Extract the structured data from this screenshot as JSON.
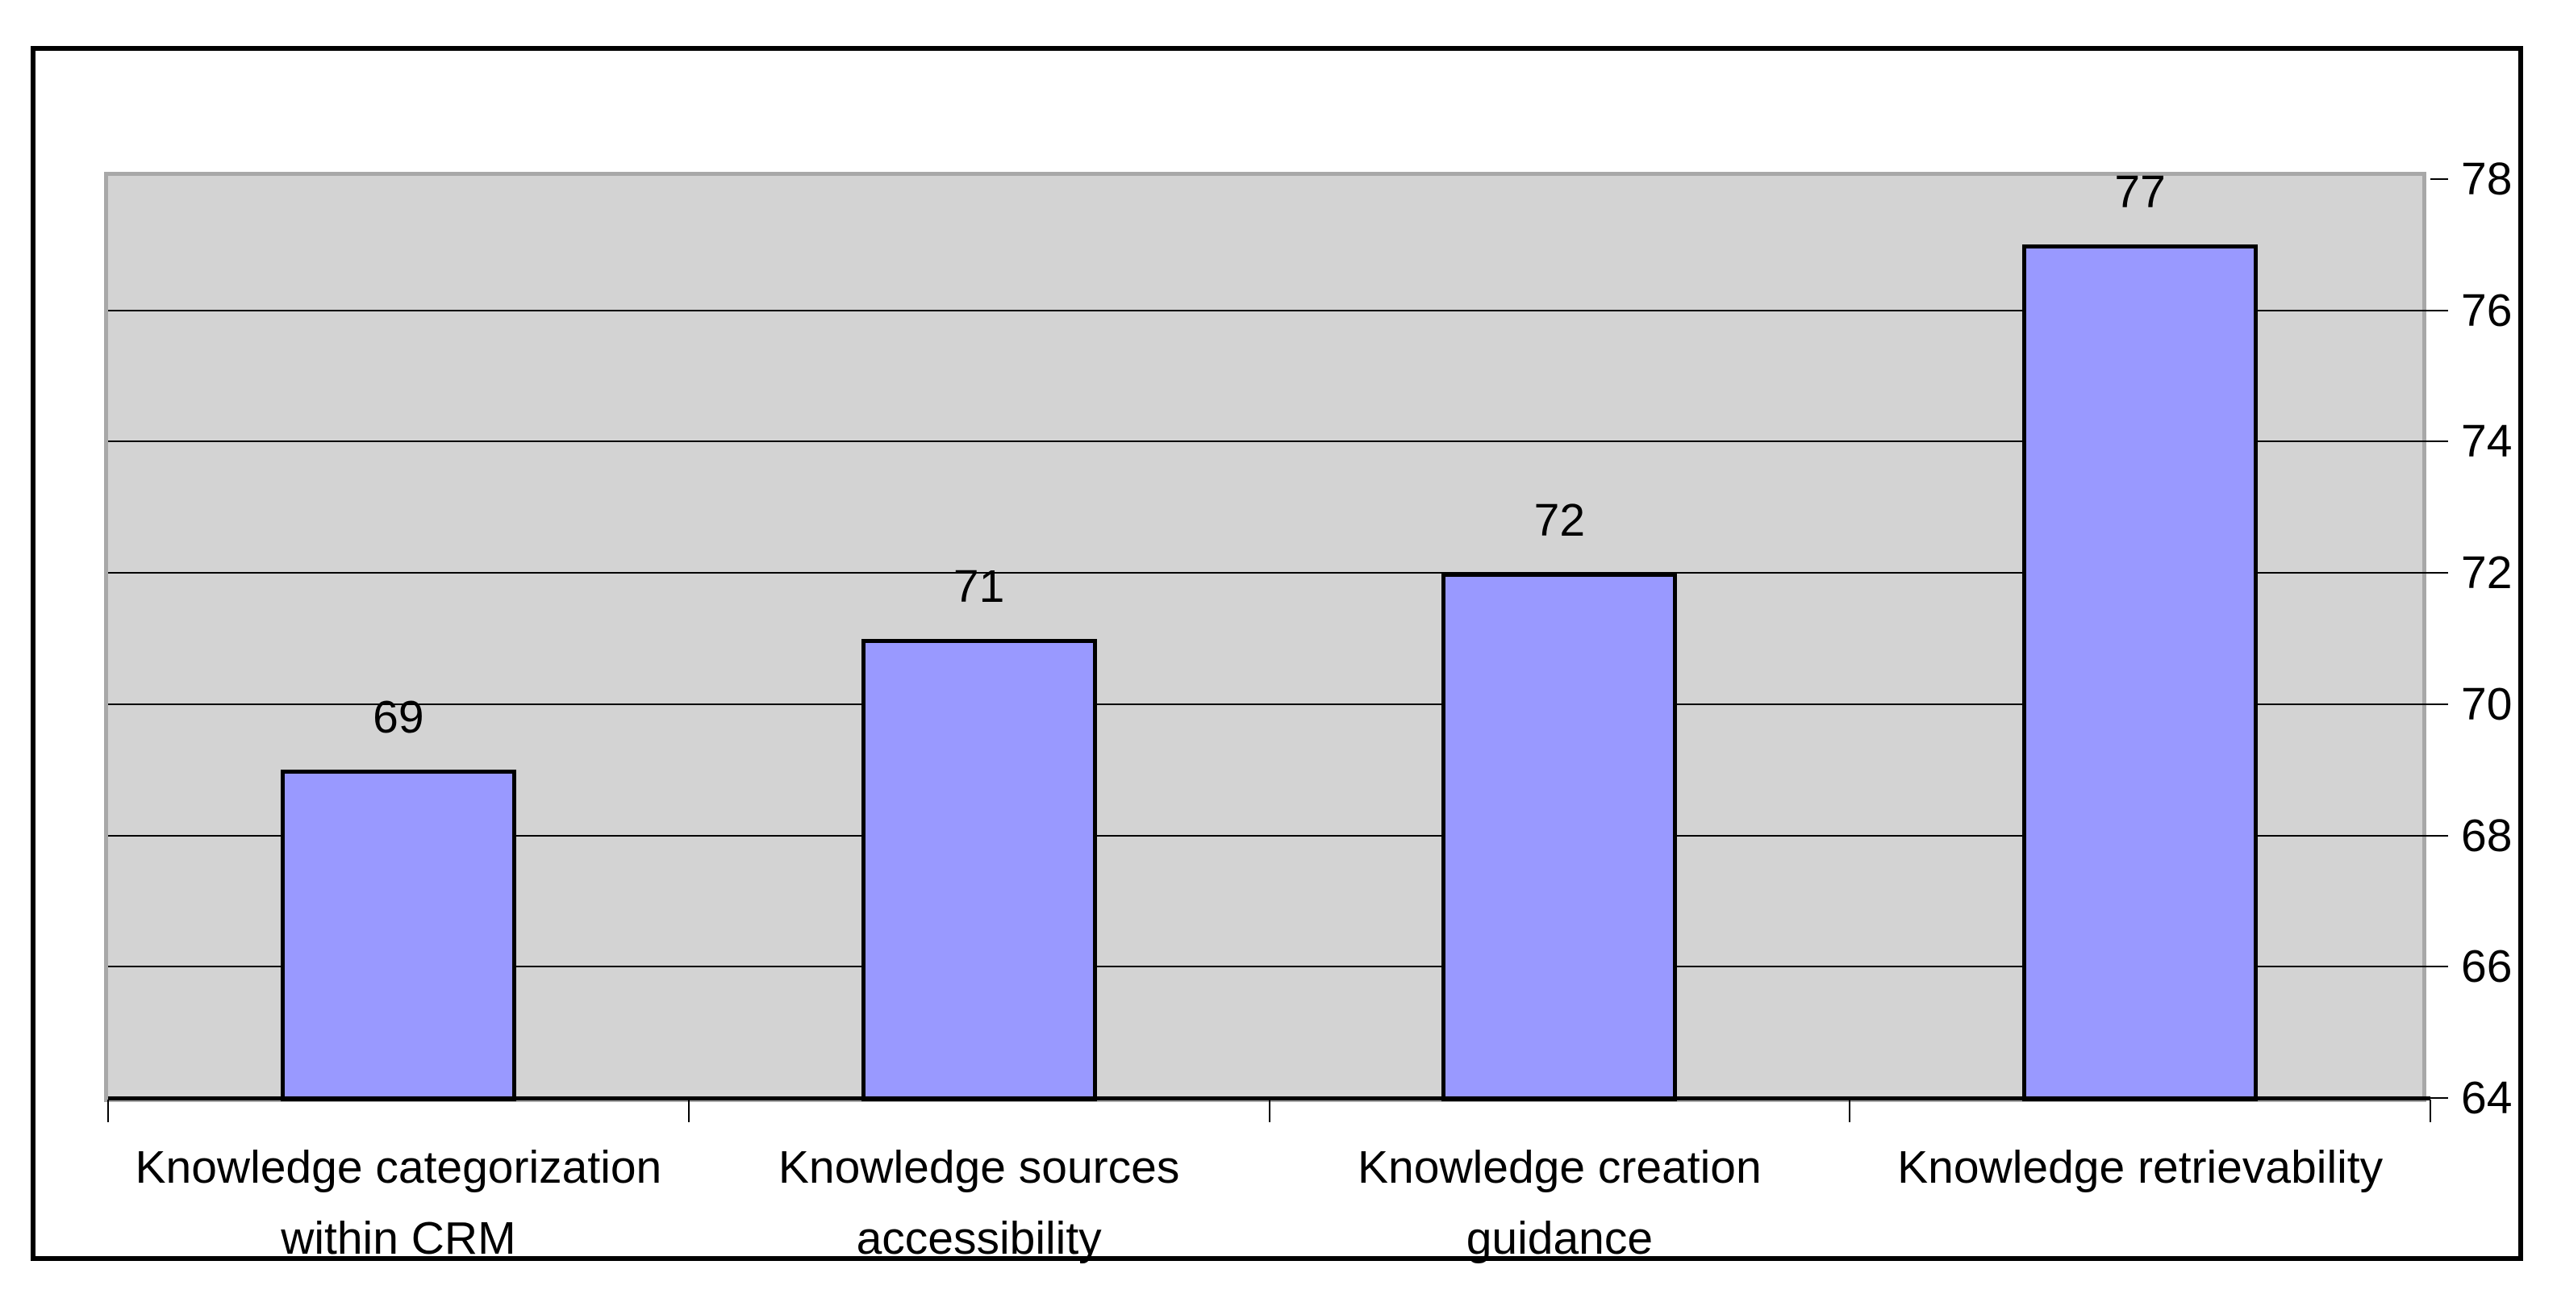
{
  "chart_data": {
    "type": "bar",
    "title": "",
    "xlabel": "",
    "ylabel": "",
    "categories": [
      "Knowledge categorization within CRM",
      "Knowledge sources accessibility",
      "Knowledge creation guidance",
      "Knowledge retrievability"
    ],
    "category_lines": [
      [
        "Knowledge categorization",
        "within CRM"
      ],
      [
        "Knowledge sources",
        "accessibility"
      ],
      [
        "Knowledge creation",
        "guidance"
      ],
      [
        "Knowledge retrievability"
      ]
    ],
    "values": [
      69,
      71,
      72,
      77
    ],
    "data_labels": [
      "69",
      "71",
      "72",
      "77"
    ],
    "ylim": [
      64,
      78
    ],
    "ytick_step": 2,
    "ytick_labels": [
      "64",
      "66",
      "68",
      "70",
      "72",
      "74",
      "76",
      "78"
    ],
    "yaxis_side": "right",
    "grid": "horizontal",
    "legend": "none",
    "colors": {
      "bar_fill": "#9999FF",
      "bar_border": "#000000",
      "plot_background": "#D3D3D3",
      "plot_border": "#A8A8A8",
      "gridline": "#000000",
      "axis_line": "#000000",
      "outer_border": "#000000",
      "text": "#000000",
      "page_background": "#FFFFFF"
    }
  }
}
